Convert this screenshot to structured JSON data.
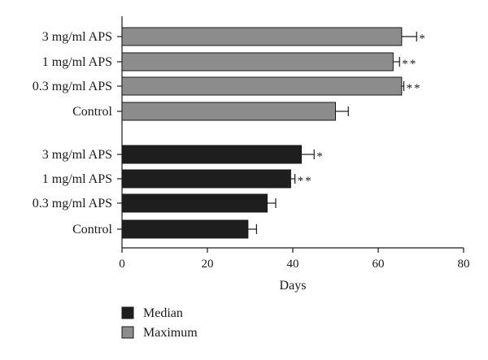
{
  "chart_data": {
    "type": "bar",
    "orientation": "horizontal",
    "title": "",
    "xlabel": "Days",
    "ylabel": "",
    "xlim": [
      0,
      80
    ],
    "xticks": [
      0,
      20,
      40,
      60,
      80
    ],
    "grid": false,
    "legend_position": "bottom-left",
    "groups": [
      {
        "series": "Maximum",
        "color": "#8c8c8c",
        "bars": [
          {
            "label": "3 mg/ml APS",
            "value": 65.5,
            "error": 3.5,
            "sig": "*"
          },
          {
            "label": "1 mg/ml APS",
            "value": 63.5,
            "error": 1.5,
            "sig": "**"
          },
          {
            "label": "0.3 mg/ml APS",
            "value": 65.5,
            "error": 0.5,
            "sig": "**"
          },
          {
            "label": "Control",
            "value": 50,
            "error": 3,
            "sig": ""
          }
        ]
      },
      {
        "series": "Median",
        "color": "#1e1e1e",
        "bars": [
          {
            "label": "3 mg/ml APS",
            "value": 42,
            "error": 3,
            "sig": "*"
          },
          {
            "label": "1 mg/ml APS",
            "value": 39.5,
            "error": 1,
            "sig": "**"
          },
          {
            "label": "0.3 mg/ml APS",
            "value": 34,
            "error": 2,
            "sig": ""
          },
          {
            "label": "Control",
            "value": 29.5,
            "error": 2,
            "sig": ""
          }
        ]
      }
    ],
    "legend": [
      {
        "name": "Median",
        "color": "#1e1e1e"
      },
      {
        "name": "Maximum",
        "color": "#8c8c8c"
      }
    ]
  }
}
